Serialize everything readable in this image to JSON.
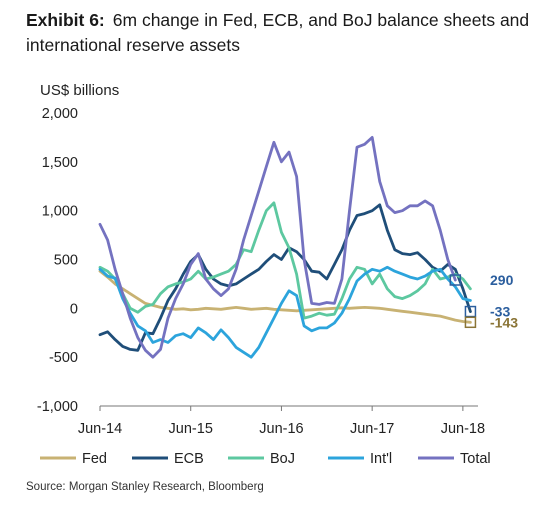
{
  "header": {
    "exhibit_label": "Exhibit 6:",
    "title": "6m change in Fed, ECB, and BoJ balance sheets and international reserve assets"
  },
  "source": "Source: Morgan Stanley Research, Bloomberg",
  "chart_data": {
    "type": "line",
    "ylabel": "US$ billions",
    "xlabel": "",
    "ylim": [
      -1000,
      2000
    ],
    "yticks": [
      -1000,
      -500,
      0,
      500,
      1000,
      1500,
      2000
    ],
    "ytick_labels": [
      "-1,000",
      "-500",
      "0",
      "500",
      "1,000",
      "1,500",
      "2,000"
    ],
    "x_tick_labels": [
      "Jun-14",
      "Jun-15",
      "Jun-16",
      "Jun-17",
      "Jun-18"
    ],
    "x_range": [
      "2014-06",
      "2018-08"
    ],
    "grid": false,
    "legend_position": "bottom",
    "end_labels": [
      {
        "text": "290",
        "series": "Total",
        "value": 290,
        "color": "#2b5e9e"
      },
      {
        "text": "-33",
        "series": "ECB",
        "value": -33,
        "color": "#2b5e9e"
      },
      {
        "text": "-143",
        "series": "Fed",
        "value": -143,
        "color": "#8a7436"
      }
    ],
    "series": [
      {
        "name": "Fed",
        "color": "#c8b273",
        "points": [
          [
            "2014-06",
            380
          ],
          [
            "2014-07",
            320
          ],
          [
            "2014-08",
            250
          ],
          [
            "2014-09",
            200
          ],
          [
            "2014-10",
            150
          ],
          [
            "2014-11",
            100
          ],
          [
            "2014-12",
            50
          ],
          [
            "2015-01",
            30
          ],
          [
            "2015-02",
            10
          ],
          [
            "2015-03",
            0
          ],
          [
            "2015-04",
            -10
          ],
          [
            "2015-05",
            -5
          ],
          [
            "2015-06",
            -15
          ],
          [
            "2015-07",
            -10
          ],
          [
            "2015-08",
            0
          ],
          [
            "2015-09",
            -5
          ],
          [
            "2015-10",
            -10
          ],
          [
            "2015-11",
            0
          ],
          [
            "2015-12",
            10
          ],
          [
            "2016-01",
            0
          ],
          [
            "2016-02",
            -10
          ],
          [
            "2016-03",
            -5
          ],
          [
            "2016-04",
            0
          ],
          [
            "2016-05",
            -10
          ],
          [
            "2016-06",
            -15
          ],
          [
            "2016-07",
            -20
          ],
          [
            "2016-08",
            -25
          ],
          [
            "2016-09",
            -20
          ],
          [
            "2016-10",
            -15
          ],
          [
            "2016-11",
            -10
          ],
          [
            "2016-12",
            -5
          ],
          [
            "2017-01",
            0
          ],
          [
            "2017-02",
            5
          ],
          [
            "2017-03",
            0
          ],
          [
            "2017-04",
            5
          ],
          [
            "2017-05",
            10
          ],
          [
            "2017-06",
            5
          ],
          [
            "2017-07",
            0
          ],
          [
            "2017-08",
            -10
          ],
          [
            "2017-09",
            -20
          ],
          [
            "2017-10",
            -30
          ],
          [
            "2017-11",
            -40
          ],
          [
            "2017-12",
            -50
          ],
          [
            "2018-01",
            -60
          ],
          [
            "2018-02",
            -70
          ],
          [
            "2018-03",
            -80
          ],
          [
            "2018-04",
            -100
          ],
          [
            "2018-05",
            -120
          ],
          [
            "2018-06",
            -135
          ],
          [
            "2018-07",
            -143
          ]
        ]
      },
      {
        "name": "ECB",
        "color": "#1f4e79",
        "points": [
          [
            "2014-06",
            -270
          ],
          [
            "2014-07",
            -240
          ],
          [
            "2014-08",
            -320
          ],
          [
            "2014-09",
            -390
          ],
          [
            "2014-10",
            -420
          ],
          [
            "2014-11",
            -430
          ],
          [
            "2014-12",
            -250
          ],
          [
            "2015-01",
            -260
          ],
          [
            "2015-02",
            -100
          ],
          [
            "2015-03",
            80
          ],
          [
            "2015-04",
            200
          ],
          [
            "2015-05",
            350
          ],
          [
            "2015-06",
            480
          ],
          [
            "2015-07",
            550
          ],
          [
            "2015-08",
            400
          ],
          [
            "2015-09",
            300
          ],
          [
            "2015-10",
            250
          ],
          [
            "2015-11",
            230
          ],
          [
            "2015-12",
            250
          ],
          [
            "2016-01",
            300
          ],
          [
            "2016-02",
            350
          ],
          [
            "2016-03",
            400
          ],
          [
            "2016-04",
            480
          ],
          [
            "2016-05",
            550
          ],
          [
            "2016-06",
            500
          ],
          [
            "2016-07",
            620
          ],
          [
            "2016-08",
            580
          ],
          [
            "2016-09",
            500
          ],
          [
            "2016-10",
            380
          ],
          [
            "2016-11",
            370
          ],
          [
            "2016-12",
            300
          ],
          [
            "2017-01",
            450
          ],
          [
            "2017-02",
            600
          ],
          [
            "2017-03",
            800
          ],
          [
            "2017-04",
            950
          ],
          [
            "2017-05",
            970
          ],
          [
            "2017-06",
            1000
          ],
          [
            "2017-07",
            1060
          ],
          [
            "2017-08",
            800
          ],
          [
            "2017-09",
            600
          ],
          [
            "2017-10",
            560
          ],
          [
            "2017-11",
            550
          ],
          [
            "2017-12",
            570
          ],
          [
            "2018-01",
            500
          ],
          [
            "2018-02",
            420
          ],
          [
            "2018-03",
            380
          ],
          [
            "2018-04",
            450
          ],
          [
            "2018-05",
            400
          ],
          [
            "2018-06",
            200
          ],
          [
            "2018-07",
            -33
          ]
        ]
      },
      {
        "name": "BoJ",
        "color": "#5dc8a0",
        "points": [
          [
            "2014-06",
            420
          ],
          [
            "2014-07",
            380
          ],
          [
            "2014-08",
            300
          ],
          [
            "2014-09",
            150
          ],
          [
            "2014-10",
            0
          ],
          [
            "2014-11",
            -40
          ],
          [
            "2014-12",
            20
          ],
          [
            "2015-01",
            40
          ],
          [
            "2015-02",
            150
          ],
          [
            "2015-03",
            220
          ],
          [
            "2015-04",
            250
          ],
          [
            "2015-05",
            270
          ],
          [
            "2015-06",
            300
          ],
          [
            "2015-07",
            380
          ],
          [
            "2015-08",
            300
          ],
          [
            "2015-09",
            320
          ],
          [
            "2015-10",
            350
          ],
          [
            "2015-11",
            380
          ],
          [
            "2015-12",
            450
          ],
          [
            "2016-01",
            600
          ],
          [
            "2016-02",
            580
          ],
          [
            "2016-03",
            800
          ],
          [
            "2016-04",
            1000
          ],
          [
            "2016-05",
            1080
          ],
          [
            "2016-06",
            780
          ],
          [
            "2016-07",
            620
          ],
          [
            "2016-08",
            350
          ],
          [
            "2016-09",
            -100
          ],
          [
            "2016-10",
            -80
          ],
          [
            "2016-11",
            -50
          ],
          [
            "2016-12",
            -70
          ],
          [
            "2017-01",
            -60
          ],
          [
            "2017-02",
            100
          ],
          [
            "2017-03",
            300
          ],
          [
            "2017-04",
            420
          ],
          [
            "2017-05",
            400
          ],
          [
            "2017-06",
            250
          ],
          [
            "2017-07",
            350
          ],
          [
            "2017-08",
            200
          ],
          [
            "2017-09",
            120
          ],
          [
            "2017-10",
            100
          ],
          [
            "2017-11",
            130
          ],
          [
            "2017-12",
            180
          ],
          [
            "2018-01",
            250
          ],
          [
            "2018-02",
            400
          ],
          [
            "2018-03",
            300
          ],
          [
            "2018-04",
            320
          ],
          [
            "2018-05",
            350
          ],
          [
            "2018-06",
            300
          ],
          [
            "2018-07",
            200
          ]
        ]
      },
      {
        "name": "Int'l",
        "color": "#2ca4dc",
        "points": [
          [
            "2014-06",
            400
          ],
          [
            "2014-07",
            330
          ],
          [
            "2014-08",
            310
          ],
          [
            "2014-09",
            100
          ],
          [
            "2014-10",
            -50
          ],
          [
            "2014-11",
            -180
          ],
          [
            "2014-12",
            -230
          ],
          [
            "2015-01",
            -350
          ],
          [
            "2015-02",
            -320
          ],
          [
            "2015-03",
            -350
          ],
          [
            "2015-04",
            -280
          ],
          [
            "2015-05",
            -260
          ],
          [
            "2015-06",
            -300
          ],
          [
            "2015-07",
            -200
          ],
          [
            "2015-08",
            -250
          ],
          [
            "2015-09",
            -320
          ],
          [
            "2015-10",
            -220
          ],
          [
            "2015-11",
            -300
          ],
          [
            "2015-12",
            -400
          ],
          [
            "2016-01",
            -450
          ],
          [
            "2016-02",
            -500
          ],
          [
            "2016-03",
            -400
          ],
          [
            "2016-04",
            -250
          ],
          [
            "2016-05",
            -100
          ],
          [
            "2016-06",
            50
          ],
          [
            "2016-07",
            180
          ],
          [
            "2016-08",
            130
          ],
          [
            "2016-09",
            -180
          ],
          [
            "2016-10",
            -230
          ],
          [
            "2016-11",
            -200
          ],
          [
            "2016-12",
            -200
          ],
          [
            "2017-01",
            -150
          ],
          [
            "2017-02",
            -50
          ],
          [
            "2017-03",
            100
          ],
          [
            "2017-04",
            280
          ],
          [
            "2017-05",
            350
          ],
          [
            "2017-06",
            400
          ],
          [
            "2017-07",
            380
          ],
          [
            "2017-08",
            420
          ],
          [
            "2017-09",
            380
          ],
          [
            "2017-10",
            350
          ],
          [
            "2017-11",
            320
          ],
          [
            "2017-12",
            300
          ],
          [
            "2018-01",
            330
          ],
          [
            "2018-02",
            380
          ],
          [
            "2018-03",
            400
          ],
          [
            "2018-04",
            300
          ],
          [
            "2018-05",
            220
          ],
          [
            "2018-06",
            100
          ],
          [
            "2018-07",
            80
          ]
        ]
      },
      {
        "name": "Total",
        "color": "#7472c0",
        "points": [
          [
            "2014-06",
            860
          ],
          [
            "2014-07",
            700
          ],
          [
            "2014-08",
            400
          ],
          [
            "2014-09",
            150
          ],
          [
            "2014-10",
            -100
          ],
          [
            "2014-11",
            -300
          ],
          [
            "2014-12",
            -430
          ],
          [
            "2015-01",
            -500
          ],
          [
            "2015-02",
            -420
          ],
          [
            "2015-03",
            -100
          ],
          [
            "2015-04",
            100
          ],
          [
            "2015-05",
            250
          ],
          [
            "2015-06",
            450
          ],
          [
            "2015-07",
            560
          ],
          [
            "2015-08",
            300
          ],
          [
            "2015-09",
            200
          ],
          [
            "2015-10",
            130
          ],
          [
            "2015-11",
            200
          ],
          [
            "2015-12",
            400
          ],
          [
            "2016-01",
            700
          ],
          [
            "2016-02",
            950
          ],
          [
            "2016-03",
            1200
          ],
          [
            "2016-04",
            1450
          ],
          [
            "2016-05",
            1700
          ],
          [
            "2016-06",
            1500
          ],
          [
            "2016-07",
            1600
          ],
          [
            "2016-08",
            1350
          ],
          [
            "2016-09",
            500
          ],
          [
            "2016-10",
            50
          ],
          [
            "2016-11",
            40
          ],
          [
            "2016-12",
            60
          ],
          [
            "2017-01",
            50
          ],
          [
            "2017-02",
            300
          ],
          [
            "2017-03",
            1000
          ],
          [
            "2017-04",
            1650
          ],
          [
            "2017-05",
            1680
          ],
          [
            "2017-06",
            1750
          ],
          [
            "2017-07",
            1300
          ],
          [
            "2017-08",
            1050
          ],
          [
            "2017-09",
            980
          ],
          [
            "2017-10",
            1000
          ],
          [
            "2017-11",
            1050
          ],
          [
            "2017-12",
            1050
          ],
          [
            "2018-01",
            1100
          ],
          [
            "2018-02",
            1050
          ],
          [
            "2018-03",
            800
          ],
          [
            "2018-04",
            500
          ],
          [
            "2018-05",
            290
          ]
        ]
      }
    ]
  }
}
